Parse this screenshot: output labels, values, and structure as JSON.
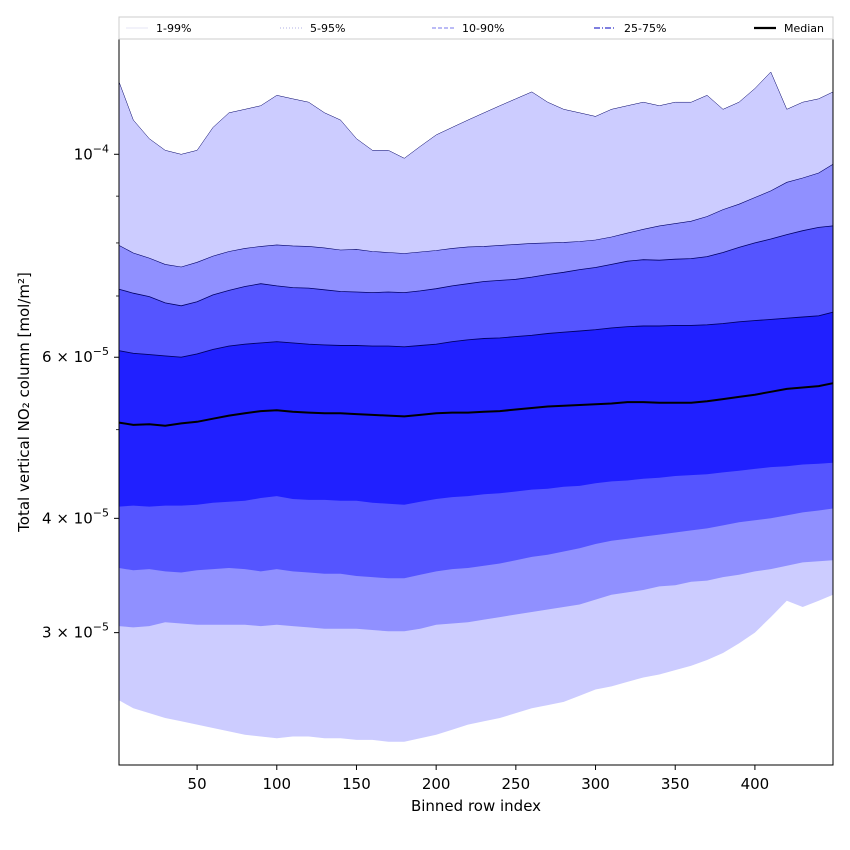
{
  "chart_data": {
    "type": "area",
    "xlabel": "Binned row index",
    "ylabel": "Total vertical NO₂ column [mol/m²]",
    "y_scale": "log",
    "xlim": [
      1,
      449
    ],
    "ylim": [
      2.15e-05,
      0.000134
    ],
    "x_ticks": [
      50,
      100,
      150,
      200,
      250,
      300,
      350,
      400
    ],
    "y_ticks": [
      {
        "value": 0.0001,
        "mantissa": "10",
        "exponent": "−4"
      },
      {
        "value": 6e-05,
        "mantissa": "6 × 10",
        "exponent": "−5"
      },
      {
        "value": 4e-05,
        "mantissa": "4 × 10",
        "exponent": "−5"
      },
      {
        "value": 3e-05,
        "mantissa": "3 × 10",
        "exponent": "−5"
      }
    ],
    "y_minor_ticks": [
      9e-05,
      8e-05,
      7e-05,
      5e-05
    ],
    "grid": false,
    "legend_position": "top, full width",
    "legend": [
      {
        "label": "1-99%",
        "color": "#c9c9ee",
        "style": "solid"
      },
      {
        "label": "5-95%",
        "color": "#9999dd",
        "style": "dotted"
      },
      {
        "label": "10-90%",
        "color": "#7777ee",
        "style": "dashed"
      },
      {
        "label": "25-75%",
        "color": "#3333cc",
        "style": "dashdot"
      },
      {
        "label": "Median",
        "color": "#000000",
        "style": "solid"
      }
    ],
    "fill_colors": [
      "#ccccff",
      "#9090ff",
      "#5555ff",
      "#2020ff"
    ],
    "x": [
      1,
      10,
      20,
      30,
      40,
      50,
      60,
      70,
      80,
      90,
      100,
      110,
      120,
      130,
      140,
      150,
      160,
      170,
      180,
      190,
      200,
      210,
      220,
      230,
      240,
      250,
      260,
      270,
      280,
      290,
      300,
      310,
      320,
      330,
      340,
      350,
      360,
      370,
      380,
      390,
      400,
      410,
      420,
      430,
      440,
      449
    ],
    "series": [
      {
        "name": "1-99%",
        "band": "outer",
        "upper": [
          0.00012,
          0.000109,
          0.000104,
          0.000101,
          0.0001,
          0.000101,
          0.000107,
          0.000111,
          0.000112,
          0.000113,
          0.000116,
          0.000115,
          0.000114,
          0.000111,
          0.000109,
          0.000104,
          0.000101,
          0.000101,
          9.9e-05,
          0.000102,
          0.000105,
          0.000107,
          0.000109,
          0.000111,
          0.000113,
          0.000115,
          0.000117,
          0.000114,
          0.000112,
          0.000111,
          0.00011,
          0.000112,
          0.000113,
          0.000114,
          0.000113,
          0.000114,
          0.000114,
          0.000116,
          0.000112,
          0.000114,
          0.000118,
          0.000123,
          0.000112,
          0.000114,
          0.000115,
          0.000117
        ],
        "lower": [
          2.53e-05,
          2.48e-05,
          2.45e-05,
          2.42e-05,
          2.4e-05,
          2.38e-05,
          2.36e-05,
          2.34e-05,
          2.32e-05,
          2.31e-05,
          2.3e-05,
          2.31e-05,
          2.31e-05,
          2.3e-05,
          2.3e-05,
          2.29e-05,
          2.29e-05,
          2.28e-05,
          2.28e-05,
          2.3e-05,
          2.32e-05,
          2.35e-05,
          2.38e-05,
          2.4e-05,
          2.42e-05,
          2.45e-05,
          2.48e-05,
          2.5e-05,
          2.52e-05,
          2.56e-05,
          2.6e-05,
          2.62e-05,
          2.65e-05,
          2.68e-05,
          2.7e-05,
          2.73e-05,
          2.76e-05,
          2.8e-05,
          2.85e-05,
          2.92e-05,
          3e-05,
          3.12e-05,
          3.25e-05,
          3.2e-05,
          3.25e-05,
          3.3e-05
        ]
      },
      {
        "name": "5-95%",
        "band": "second",
        "upper": [
          7.95e-05,
          7.8e-05,
          7.7e-05,
          7.58e-05,
          7.53e-05,
          7.62e-05,
          7.74e-05,
          7.83e-05,
          7.89e-05,
          7.93e-05,
          7.96e-05,
          7.94e-05,
          7.93e-05,
          7.9e-05,
          7.86e-05,
          7.87e-05,
          7.83e-05,
          7.81e-05,
          7.79e-05,
          7.82e-05,
          7.85e-05,
          7.89e-05,
          7.92e-05,
          7.93e-05,
          7.95e-05,
          7.97e-05,
          7.99e-05,
          8e-05,
          8.01e-05,
          8.03e-05,
          8.06e-05,
          8.12e-05,
          8.2e-05,
          8.28e-05,
          8.35e-05,
          8.4e-05,
          8.45e-05,
          8.55e-05,
          8.7e-05,
          8.82e-05,
          8.97e-05,
          9.12e-05,
          9.32e-05,
          9.42e-05,
          9.54e-05,
          9.75e-05
        ],
        "lower": [
          3.05e-05,
          3.04e-05,
          3.05e-05,
          3.08e-05,
          3.07e-05,
          3.06e-05,
          3.06e-05,
          3.06e-05,
          3.06e-05,
          3.05e-05,
          3.06e-05,
          3.05e-05,
          3.04e-05,
          3.03e-05,
          3.03e-05,
          3.03e-05,
          3.02e-05,
          3.01e-05,
          3.01e-05,
          3.03e-05,
          3.06e-05,
          3.07e-05,
          3.08e-05,
          3.1e-05,
          3.12e-05,
          3.14e-05,
          3.16e-05,
          3.18e-05,
          3.2e-05,
          3.22e-05,
          3.26e-05,
          3.3e-05,
          3.32e-05,
          3.34e-05,
          3.37e-05,
          3.38e-05,
          3.41e-05,
          3.42e-05,
          3.45e-05,
          3.47e-05,
          3.5e-05,
          3.52e-05,
          3.55e-05,
          3.58e-05,
          3.59e-05,
          3.6e-05
        ]
      },
      {
        "name": "10-90%",
        "band": "third",
        "upper": [
          7.12e-05,
          7.05e-05,
          6.99e-05,
          6.88e-05,
          6.83e-05,
          6.9e-05,
          7.02e-05,
          7.1e-05,
          7.17e-05,
          7.22e-05,
          7.18e-05,
          7.15e-05,
          7.14e-05,
          7.11e-05,
          7.08e-05,
          7.07e-05,
          7.06e-05,
          7.07e-05,
          7.06e-05,
          7.09e-05,
          7.13e-05,
          7.18e-05,
          7.22e-05,
          7.26e-05,
          7.28e-05,
          7.3e-05,
          7.34e-05,
          7.39e-05,
          7.43e-05,
          7.48e-05,
          7.52e-05,
          7.58e-05,
          7.64e-05,
          7.67e-05,
          7.66e-05,
          7.68e-05,
          7.69e-05,
          7.73e-05,
          7.81e-05,
          7.91e-05,
          8e-05,
          8.08e-05,
          8.17e-05,
          8.25e-05,
          8.32e-05,
          8.35e-05
        ],
        "lower": [
          3.53e-05,
          3.51e-05,
          3.52e-05,
          3.5e-05,
          3.49e-05,
          3.51e-05,
          3.52e-05,
          3.53e-05,
          3.52e-05,
          3.5e-05,
          3.52e-05,
          3.5e-05,
          3.49e-05,
          3.48e-05,
          3.48e-05,
          3.46e-05,
          3.45e-05,
          3.44e-05,
          3.44e-05,
          3.47e-05,
          3.5e-05,
          3.52e-05,
          3.53e-05,
          3.55e-05,
          3.57e-05,
          3.6e-05,
          3.63e-05,
          3.65e-05,
          3.68e-05,
          3.71e-05,
          3.75e-05,
          3.78e-05,
          3.8e-05,
          3.82e-05,
          3.84e-05,
          3.86e-05,
          3.88e-05,
          3.9e-05,
          3.93e-05,
          3.96e-05,
          3.98e-05,
          4e-05,
          4.03e-05,
          4.06e-05,
          4.08e-05,
          4.1e-05
        ]
      },
      {
        "name": "25-75%",
        "band": "inner",
        "upper": [
          6.1e-05,
          6.06e-05,
          6.04e-05,
          6.02e-05,
          6e-05,
          6.05e-05,
          6.12e-05,
          6.17e-05,
          6.2e-05,
          6.22e-05,
          6.24e-05,
          6.22e-05,
          6.2e-05,
          6.19e-05,
          6.18e-05,
          6.18e-05,
          6.17e-05,
          6.17e-05,
          6.16e-05,
          6.18e-05,
          6.2e-05,
          6.24e-05,
          6.27e-05,
          6.29e-05,
          6.3e-05,
          6.32e-05,
          6.34e-05,
          6.37e-05,
          6.39e-05,
          6.41e-05,
          6.43e-05,
          6.46e-05,
          6.48e-05,
          6.49e-05,
          6.49e-05,
          6.5e-05,
          6.5e-05,
          6.51e-05,
          6.53e-05,
          6.56e-05,
          6.58e-05,
          6.6e-05,
          6.62e-05,
          6.64e-05,
          6.66e-05,
          6.72e-05
        ],
        "lower": [
          4.12e-05,
          4.13e-05,
          4.12e-05,
          4.13e-05,
          4.13e-05,
          4.14e-05,
          4.16e-05,
          4.17e-05,
          4.18e-05,
          4.21e-05,
          4.23e-05,
          4.2e-05,
          4.19e-05,
          4.19e-05,
          4.18e-05,
          4.18e-05,
          4.16e-05,
          4.15e-05,
          4.14e-05,
          4.17e-05,
          4.2e-05,
          4.22e-05,
          4.23e-05,
          4.25e-05,
          4.26e-05,
          4.28e-05,
          4.3e-05,
          4.31e-05,
          4.33e-05,
          4.34e-05,
          4.37e-05,
          4.39e-05,
          4.4e-05,
          4.42e-05,
          4.43e-05,
          4.45e-05,
          4.46e-05,
          4.47e-05,
          4.49e-05,
          4.51e-05,
          4.53e-05,
          4.55e-05,
          4.56e-05,
          4.58e-05,
          4.59e-05,
          4.6e-05
        ]
      },
      {
        "name": "Median",
        "band": "median",
        "values": [
          5.09e-05,
          5.06e-05,
          5.07e-05,
          5.05e-05,
          5.08e-05,
          5.1e-05,
          5.14e-05,
          5.18e-05,
          5.21e-05,
          5.24e-05,
          5.25e-05,
          5.23e-05,
          5.22e-05,
          5.21e-05,
          5.21e-05,
          5.2e-05,
          5.19e-05,
          5.18e-05,
          5.17e-05,
          5.19e-05,
          5.21e-05,
          5.22e-05,
          5.22e-05,
          5.23e-05,
          5.24e-05,
          5.26e-05,
          5.28e-05,
          5.3e-05,
          5.31e-05,
          5.32e-05,
          5.33e-05,
          5.34e-05,
          5.36e-05,
          5.36e-05,
          5.35e-05,
          5.35e-05,
          5.35e-05,
          5.37e-05,
          5.4e-05,
          5.43e-05,
          5.46e-05,
          5.5e-05,
          5.54e-05,
          5.56e-05,
          5.58e-05,
          5.62e-05
        ]
      }
    ]
  }
}
